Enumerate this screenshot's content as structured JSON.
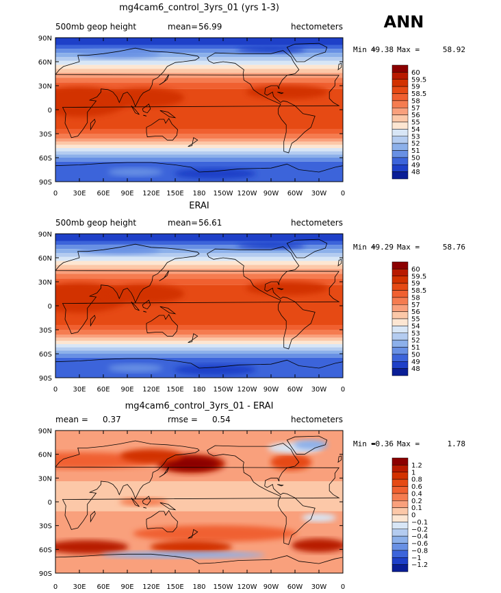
{
  "season_label": "ANN",
  "panels": [
    {
      "title": "mg4cam6_control_3yrs_01 (yrs 1-3)",
      "left_text": "500mb geop height",
      "center_label": "mean=",
      "center_value": "56.99",
      "extra_label": "",
      "extra_value": "",
      "units": "hectometers",
      "min_label": "Min =",
      "min_value": "49.38",
      "max_label": "Max =",
      "max_value": "58.92",
      "field": "abs",
      "colorbar": {
        "labels": [
          "60",
          "59.5",
          "59",
          "58.5",
          "58",
          "57",
          "56",
          "55",
          "54",
          "53",
          "52",
          "51",
          "50",
          "49",
          "48"
        ],
        "colors": [
          "#8b0000",
          "#b81a00",
          "#d23200",
          "#e64a14",
          "#f06030",
          "#f57c50",
          "#f9a07c",
          "#fcc8a8",
          "#fde6d2",
          "#d8e6f6",
          "#b4ccf0",
          "#8cb0ea",
          "#6890e4",
          "#3c64da",
          "#1e40c8",
          "#0a1e96"
        ]
      }
    },
    {
      "title": "ERAI",
      "left_text": "500mb geop height",
      "center_label": "mean=",
      "center_value": "56.61",
      "extra_label": "",
      "extra_value": "",
      "units": "hectometers",
      "min_label": "Min =",
      "min_value": "49.29",
      "max_label": "Max =",
      "max_value": "58.76",
      "field": "abs",
      "colorbar": {
        "labels": [
          "60",
          "59.5",
          "59",
          "58.5",
          "58",
          "57",
          "56",
          "55",
          "54",
          "53",
          "52",
          "51",
          "50",
          "49",
          "48"
        ],
        "colors": [
          "#8b0000",
          "#b81a00",
          "#d23200",
          "#e64a14",
          "#f06030",
          "#f57c50",
          "#f9a07c",
          "#fcc8a8",
          "#fde6d2",
          "#d8e6f6",
          "#b4ccf0",
          "#8cb0ea",
          "#6890e4",
          "#3c64da",
          "#1e40c8",
          "#0a1e96"
        ]
      }
    },
    {
      "title": "mg4cam6_control_3yrs_01 - ERAI",
      "left_text": "mean =",
      "center_label": "0.37",
      "center_value": "",
      "extra_label": "rmse =",
      "extra_value": "0.54",
      "units": "hectometers",
      "min_label": "Min =",
      "min_value": "−0.36",
      "max_label": "Max =",
      "max_value": "1.78",
      "field": "diff",
      "colorbar": {
        "labels": [
          "1.2",
          "1",
          "0.8",
          "0.6",
          "0.4",
          "0.2",
          "0.1",
          "0",
          "−0.1",
          "−0.2",
          "−0.4",
          "−0.6",
          "−0.8",
          "−1",
          "−1.2"
        ],
        "colors": [
          "#8b0000",
          "#b81a00",
          "#d23200",
          "#e64a14",
          "#f06030",
          "#f57c50",
          "#f9a07c",
          "#fcc8a8",
          "#fde6d2",
          "#d8e6f6",
          "#b4ccf0",
          "#8cb0ea",
          "#6890e4",
          "#3c64da",
          "#1e40c8",
          "#0a1e96"
        ]
      }
    }
  ],
  "chart_data": {
    "type": "heatmap",
    "x_ticks": [
      "0",
      "30E",
      "60E",
      "90E",
      "120E",
      "150E",
      "180",
      "150W",
      "120W",
      "90W",
      "60W",
      "30W",
      "0"
    ],
    "y_ticks": [
      "90N",
      "60N",
      "30N",
      "0",
      "30S",
      "60S",
      "90S"
    ],
    "xlim": [
      0,
      360
    ],
    "ylim": [
      -90,
      90
    ],
    "panels": [
      {
        "title": "mg4cam6_control_3yrs_01 (yrs 1-3)",
        "variable": "500mb geop height",
        "units": "hectometers",
        "mean": 56.99,
        "min": 49.38,
        "max": 58.92,
        "levels": [
          48,
          49,
          50,
          51,
          52,
          53,
          54,
          55,
          56,
          57,
          58,
          58.5,
          59,
          59.5,
          60
        ]
      },
      {
        "title": "ERAI",
        "variable": "500mb geop height",
        "units": "hectometers",
        "mean": 56.61,
        "min": 49.29,
        "max": 58.76,
        "levels": [
          48,
          49,
          50,
          51,
          52,
          53,
          54,
          55,
          56,
          57,
          58,
          58.5,
          59,
          59.5,
          60
        ]
      },
      {
        "title": "mg4cam6_control_3yrs_01 - ERAI",
        "units": "hectometers",
        "mean": 0.37,
        "rmse": 0.54,
        "min": -0.36,
        "max": 1.78,
        "levels": [
          -1.2,
          -1,
          -0.8,
          -0.6,
          -0.4,
          -0.2,
          -0.1,
          0,
          0.1,
          0.2,
          0.4,
          0.6,
          0.8,
          1,
          1.2
        ]
      }
    ]
  }
}
